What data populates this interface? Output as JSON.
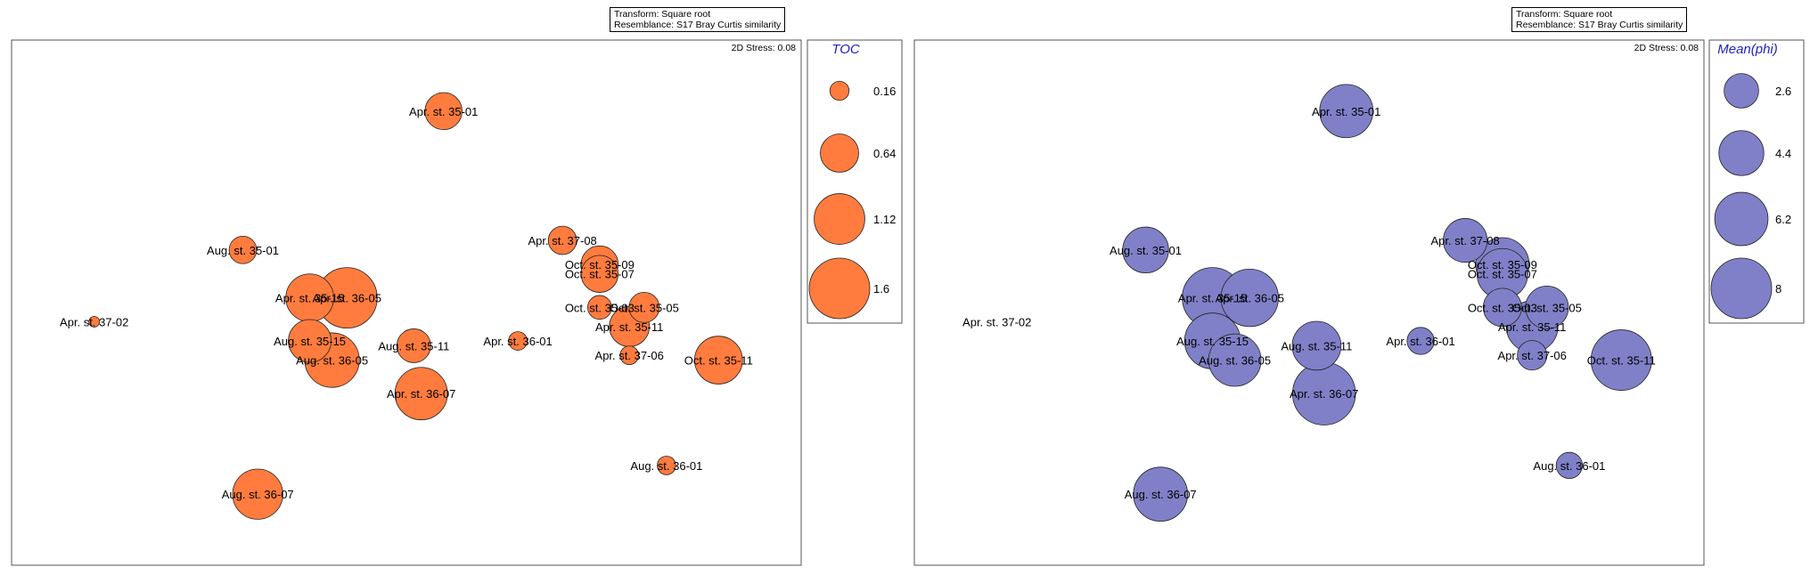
{
  "colors": {
    "toc_fill": "#ff7c3e",
    "phi_fill": "#8080c8",
    "legend_title": "#2222bb",
    "border": "#555555"
  },
  "chart_data": [
    {
      "type": "scatter",
      "variant": "bubble",
      "subtitle_lines": [
        "Transform: Square root",
        "Resemblance: S17 Bray Curtis similarity"
      ],
      "stress_label": "2D Stress: 0.08",
      "legend": {
        "title": "TOC",
        "placement": "right",
        "entries": [
          {
            "label": "0.16",
            "value": 0.16
          },
          {
            "label": "0.64",
            "value": 0.64
          },
          {
            "label": "1.12",
            "value": 1.12
          },
          {
            "label": "1.6",
            "value": 1.6
          }
        ]
      },
      "points": [
        {
          "label": "Apr. st. 35-01",
          "x": 0.55,
          "y": 0.9,
          "size": 0.6
        },
        {
          "label": "Aug. st. 35-01",
          "x": 0.28,
          "y": 0.61,
          "size": 0.33
        },
        {
          "label": "Apr. st. 37-08",
          "x": 0.71,
          "y": 0.63,
          "size": 0.35
        },
        {
          "label": "Oct. st. 35-09",
          "x": 0.76,
          "y": 0.58,
          "size": 0.6
        },
        {
          "label": "Oct. st. 35-07",
          "x": 0.76,
          "y": 0.56,
          "size": 0.6
        },
        {
          "label": "Apr. st. 35-15",
          "x": 0.37,
          "y": 0.51,
          "size": 1.0
        },
        {
          "label": "Apr. st. 36-05",
          "x": 0.42,
          "y": 0.51,
          "size": 1.6
        },
        {
          "label": "Apr. st. 37-02",
          "x": 0.08,
          "y": 0.46,
          "size": 0.05
        },
        {
          "label": "Oct. st. 35-03",
          "x": 0.76,
          "y": 0.49,
          "size": 0.25
        },
        {
          "label": "Oct. st. 35-05",
          "x": 0.82,
          "y": 0.49,
          "size": 0.4
        },
        {
          "label": "Apr. st. 35-11",
          "x": 0.8,
          "y": 0.45,
          "size": 0.7
        },
        {
          "label": "Aug. st. 35-15",
          "x": 0.37,
          "y": 0.42,
          "size": 0.8
        },
        {
          "label": "Aug. st. 35-11",
          "x": 0.51,
          "y": 0.41,
          "size": 0.5
        },
        {
          "label": "Apr. st. 36-01",
          "x": 0.65,
          "y": 0.42,
          "size": 0.15
        },
        {
          "label": "Aug. st. 36-05",
          "x": 0.4,
          "y": 0.38,
          "size": 1.3
        },
        {
          "label": "Apr. st. 37-06",
          "x": 0.8,
          "y": 0.39,
          "size": 0.15
        },
        {
          "label": "Oct. st. 35-11",
          "x": 0.92,
          "y": 0.38,
          "size": 1.0
        },
        {
          "label": "Apr. st. 36-07",
          "x": 0.52,
          "y": 0.31,
          "size": 1.2
        },
        {
          "label": "Aug. st. 36-01",
          "x": 0.85,
          "y": 0.16,
          "size": 0.15
        },
        {
          "label": "Aug. st. 36-07",
          "x": 0.3,
          "y": 0.1,
          "size": 1.1
        }
      ]
    },
    {
      "type": "scatter",
      "variant": "bubble",
      "subtitle_lines": [
        "Transform: Square root",
        "Resemblance: S17 Bray Curtis similarity"
      ],
      "stress_label": "2D Stress: 0.08",
      "legend": {
        "title": "Mean(phi)",
        "placement": "right",
        "entries": [
          {
            "label": "2.6",
            "value": 2.6
          },
          {
            "label": "4.4",
            "value": 4.4
          },
          {
            "label": "6.2",
            "value": 6.2
          },
          {
            "label": "8",
            "value": 8
          }
        ]
      },
      "points": [
        {
          "label": "Apr. st. 35-01",
          "x": 0.55,
          "y": 0.9,
          "size": 6.2
        },
        {
          "label": "Aug. st. 35-01",
          "x": 0.28,
          "y": 0.61,
          "size": 4.6
        },
        {
          "label": "Apr. st. 37-08",
          "x": 0.71,
          "y": 0.63,
          "size": 4.2
        },
        {
          "label": "Oct. st. 35-09",
          "x": 0.76,
          "y": 0.58,
          "size": 6.2
        },
        {
          "label": "Oct. st. 35-07",
          "x": 0.76,
          "y": 0.56,
          "size": 5.6
        },
        {
          "label": "Apr. st. 35-15",
          "x": 0.37,
          "y": 0.51,
          "size": 8.0
        },
        {
          "label": "Apr. st. 36-05",
          "x": 0.42,
          "y": 0.51,
          "size": 7.2
        },
        {
          "label": "Oct. st. 35-03",
          "x": 0.76,
          "y": 0.49,
          "size": 3.2
        },
        {
          "label": "Oct. st. 35-05",
          "x": 0.82,
          "y": 0.49,
          "size": 4.0
        },
        {
          "label": "Apr. st. 35-11",
          "x": 0.8,
          "y": 0.45,
          "size": 5.8
        },
        {
          "label": "Aug. st. 35-15",
          "x": 0.37,
          "y": 0.42,
          "size": 6.8
        },
        {
          "label": "Aug. st. 35-11",
          "x": 0.51,
          "y": 0.41,
          "size": 5.2
        },
        {
          "label": "Apr. st. 36-01",
          "x": 0.65,
          "y": 0.42,
          "size": 1.6
        },
        {
          "label": "Aug. st. 36-05",
          "x": 0.4,
          "y": 0.38,
          "size": 6.0
        },
        {
          "label": "Apr. st. 37-06",
          "x": 0.8,
          "y": 0.39,
          "size": 1.9
        },
        {
          "label": "Oct. st. 35-11",
          "x": 0.92,
          "y": 0.38,
          "size": 8.0
        },
        {
          "label": "Apr. st. 36-07",
          "x": 0.52,
          "y": 0.31,
          "size": 8.6
        },
        {
          "label": "Aug. st. 36-01",
          "x": 0.85,
          "y": 0.16,
          "size": 1.5
        },
        {
          "label": "Aug. st. 36-07",
          "x": 0.3,
          "y": 0.1,
          "size": 6.4
        },
        {
          "label": "Apr. st. 37-02",
          "x": 0.08,
          "y": 0.46,
          "size": 0
        }
      ]
    }
  ]
}
